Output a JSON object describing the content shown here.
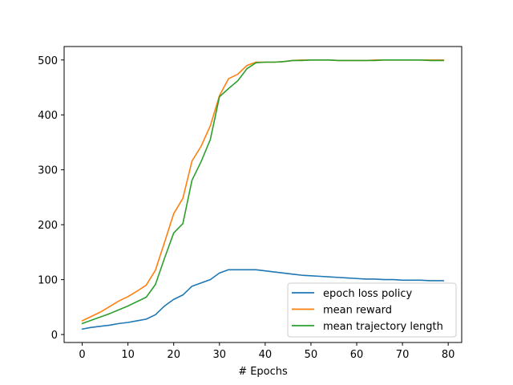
{
  "chart_data": {
    "type": "line",
    "xlabel": "# Epochs",
    "ylabel": "",
    "xlim": [
      -3.95,
      82.95
    ],
    "ylim": [
      -14.5,
      524.5
    ],
    "xticks": [
      0,
      10,
      20,
      30,
      40,
      50,
      60,
      70,
      80
    ],
    "yticks": [
      0,
      100,
      200,
      300,
      400,
      500
    ],
    "grid": false,
    "legend": "lower-right",
    "x": [
      0,
      2,
      4,
      6,
      8,
      10,
      12,
      14,
      16,
      18,
      20,
      22,
      24,
      26,
      28,
      30,
      32,
      34,
      36,
      38,
      40,
      42,
      44,
      46,
      48,
      50,
      52,
      54,
      56,
      58,
      60,
      62,
      64,
      66,
      68,
      70,
      72,
      74,
      76,
      78,
      79
    ],
    "series": [
      {
        "name": "epoch loss policy",
        "color": "#1f77b4",
        "values": [
          10,
          13,
          15,
          17,
          20,
          22,
          25,
          28,
          36,
          52,
          64,
          72,
          88,
          94,
          100,
          112,
          118,
          118,
          118,
          118,
          116,
          114,
          112,
          110,
          108,
          107,
          106,
          105,
          104,
          103,
          102,
          101,
          101,
          100,
          100,
          99,
          99,
          99,
          98,
          98,
          98
        ]
      },
      {
        "name": "mean reward",
        "color": "#ff7f0e",
        "values": [
          25,
          33,
          41,
          51,
          61,
          69,
          79,
          90,
          117,
          168,
          220,
          248,
          316,
          343,
          380,
          435,
          466,
          474,
          490,
          496,
          496,
          496,
          497,
          499,
          500,
          500,
          500,
          500,
          499,
          499,
          499,
          499,
          500,
          500,
          500,
          500,
          500,
          500,
          500,
          500,
          500
        ]
      },
      {
        "name": "mean trajectory length",
        "color": "#2ca02c",
        "values": [
          20,
          26,
          32,
          38,
          45,
          52,
          60,
          68,
          91,
          139,
          185,
          202,
          281,
          315,
          355,
          433,
          448,
          462,
          484,
          495,
          496,
          496,
          497,
          499,
          499,
          500,
          500,
          500,
          499,
          499,
          499,
          499,
          499,
          500,
          500,
          500,
          500,
          500,
          499,
          499,
          499
        ]
      }
    ]
  }
}
